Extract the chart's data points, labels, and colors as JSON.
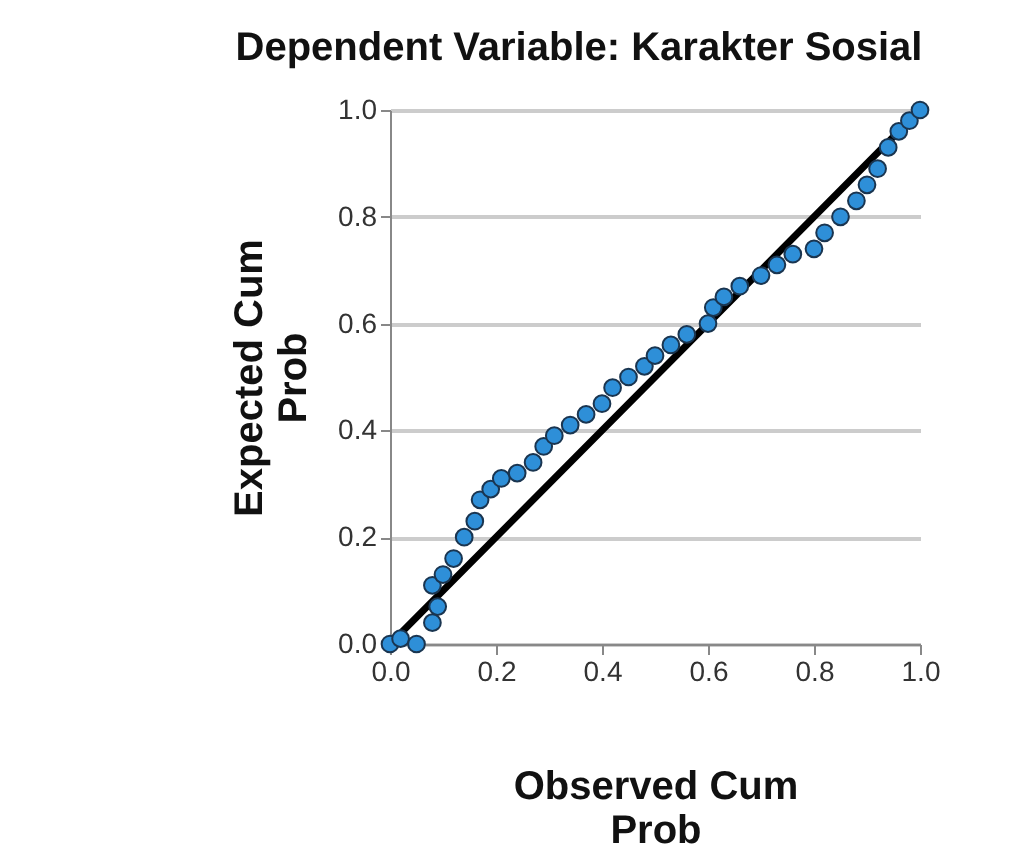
{
  "chart_data": {
    "type": "scatter",
    "title": "Dependent Variable: Karakter Sosial",
    "xlabel": "Observed Cum Prob",
    "ylabel": "Expected Cum Prob",
    "xlim": [
      0,
      1
    ],
    "ylim": [
      0,
      1
    ],
    "xticks": [
      {
        "value": 0,
        "label": "0.0"
      },
      {
        "value": 0.2,
        "label": "0.2"
      },
      {
        "value": 0.4,
        "label": "0.4"
      },
      {
        "value": 0.6,
        "label": "0.6"
      },
      {
        "value": 0.8,
        "label": "0.8"
      },
      {
        "value": 1,
        "label": "1.0"
      }
    ],
    "yticks": [
      {
        "value": 0,
        "label": "0.0"
      },
      {
        "value": 0.2,
        "label": "0.2"
      },
      {
        "value": 0.4,
        "label": "0.4"
      },
      {
        "value": 0.6,
        "label": "0.6"
      },
      {
        "value": 0.8,
        "label": "0.8"
      },
      {
        "value": 1,
        "label": "1.0"
      }
    ],
    "grid": "y",
    "series": [
      {
        "type": "line",
        "marker": "none",
        "color": "#000000",
        "x": [
          0,
          1
        ],
        "values": [
          0,
          1
        ]
      },
      {
        "marker": "circle",
        "color": "#2e8fd8",
        "x": [
          0.0,
          0.02,
          0.05,
          0.08,
          0.09,
          0.08,
          0.1,
          0.12,
          0.14,
          0.16,
          0.17,
          0.19,
          0.21,
          0.24,
          0.27,
          0.29,
          0.31,
          0.34,
          0.37,
          0.4,
          0.42,
          0.45,
          0.48,
          0.5,
          0.53,
          0.56,
          0.6,
          0.61,
          0.63,
          0.66,
          0.7,
          0.73,
          0.76,
          0.8,
          0.82,
          0.85,
          0.88,
          0.9,
          0.92,
          0.94,
          0.96,
          0.98,
          1.0
        ],
        "values": [
          0.0,
          0.01,
          0.0,
          0.04,
          0.07,
          0.11,
          0.13,
          0.16,
          0.2,
          0.23,
          0.27,
          0.29,
          0.31,
          0.32,
          0.34,
          0.37,
          0.39,
          0.41,
          0.43,
          0.45,
          0.48,
          0.5,
          0.52,
          0.54,
          0.56,
          0.58,
          0.6,
          0.63,
          0.65,
          0.67,
          0.69,
          0.71,
          0.73,
          0.74,
          0.77,
          0.8,
          0.83,
          0.86,
          0.89,
          0.93,
          0.96,
          0.98,
          1.0
        ]
      }
    ]
  }
}
